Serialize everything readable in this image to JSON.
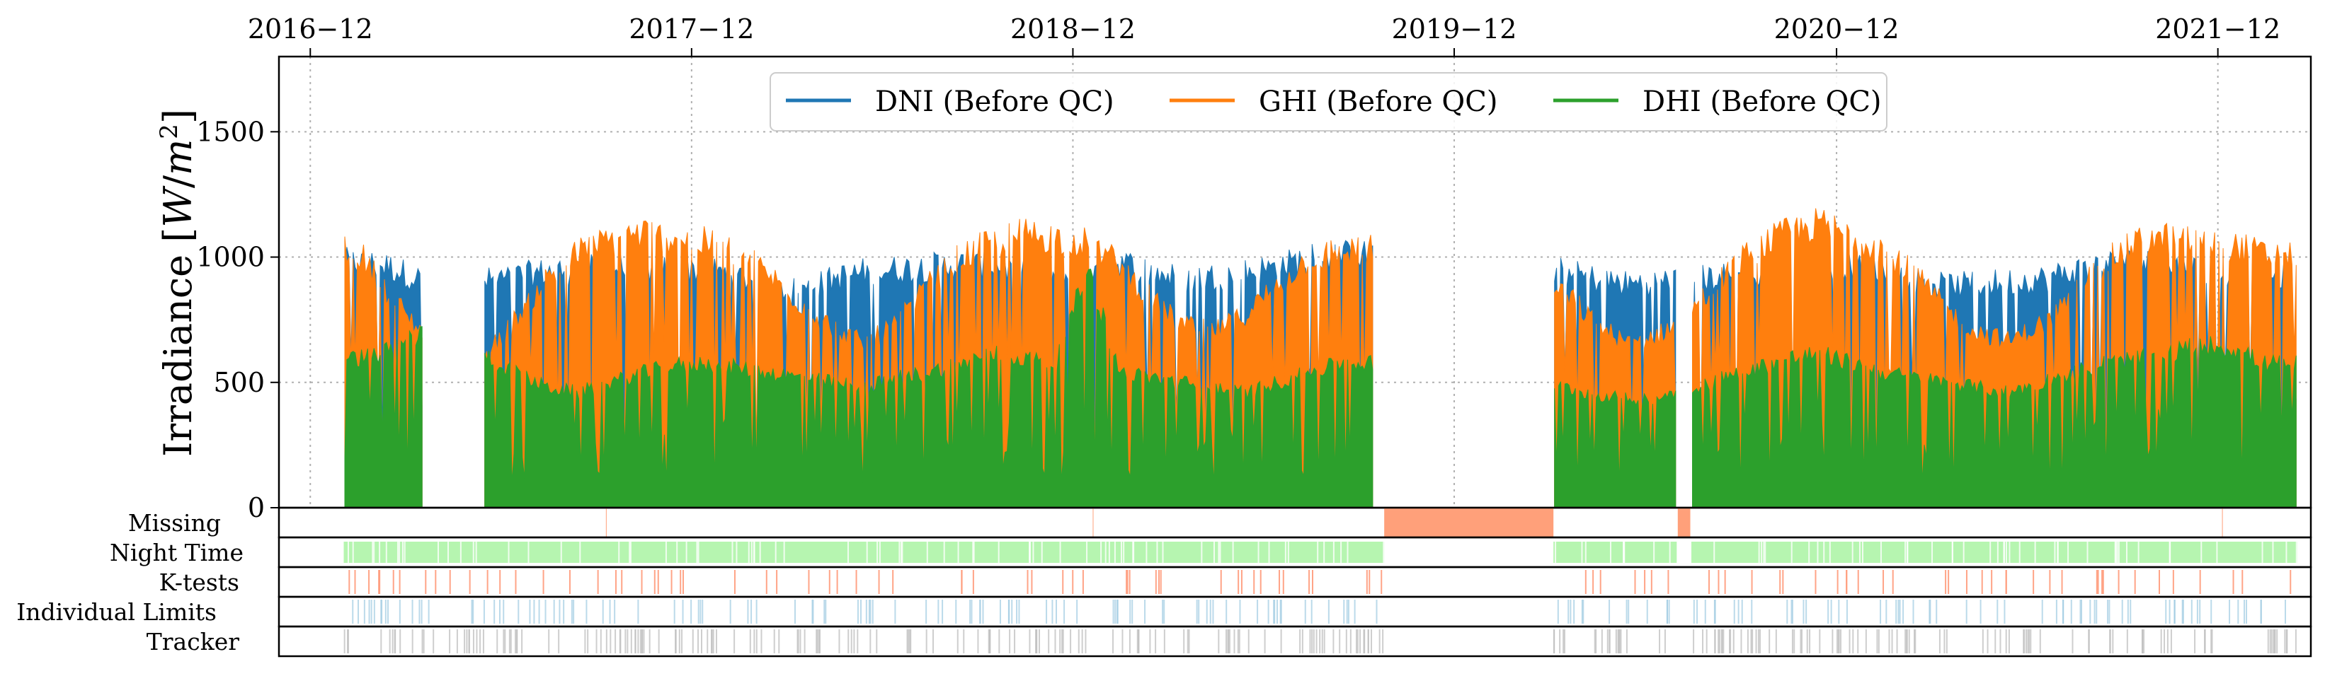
{
  "chart_data": {
    "type": "area",
    "ylabel": "Irradiance [W/m2]",
    "ylabel_base": "Irradiance [",
    "ylabel_w": "W",
    "ylabel_slash": "/",
    "ylabel_m": "m",
    "ylabel_exp": "2",
    "ylabel_end": "]",
    "ylim": [
      0,
      1800
    ],
    "yticks": [
      0,
      500,
      1000,
      1500
    ],
    "xlim": [
      "2016-11-01",
      "2022-02-28"
    ],
    "xticks": [
      "2016-12",
      "2017-12",
      "2018-12",
      "2019-12",
      "2020-12",
      "2021-12"
    ],
    "grid": true,
    "legend_position": "top-center",
    "colors": {
      "dni": "#1f77b4",
      "ghi": "#ff7f0e",
      "dhi": "#2ca02c",
      "missing": "#ffa07a",
      "night": "#b6f5b0",
      "ktests": "#ff9a7a",
      "limits": "#9ecae1",
      "tracker": "#bdbdbd"
    },
    "series": [
      {
        "name": "DNI (Before QC)",
        "key": "dni",
        "x": [
          "2017-01-15",
          "2017-02-15",
          "2017-03-15",
          "2017-04-15",
          "2017-05-15",
          "2017-06-15",
          "2017-07-15",
          "2017-08-15",
          "2017-09-15",
          "2017-10-15",
          "2017-11-15",
          "2017-12-15",
          "2018-01-15",
          "2018-02-15",
          "2018-03-15",
          "2018-04-15",
          "2018-05-15",
          "2018-06-15",
          "2018-07-15",
          "2018-08-15",
          "2018-09-15",
          "2018-10-15",
          "2018-11-15",
          "2018-12-15",
          "2019-01-15",
          "2019-02-15",
          "2019-03-15",
          "2019-04-15",
          "2019-05-15",
          "2019-06-15",
          "2019-07-15",
          "2019-08-15",
          "2019-09-15",
          "2019-10-15",
          "2019-11-15",
          "2019-12-15",
          "2020-01-15",
          "2020-02-15",
          "2020-03-15",
          "2020-04-15",
          "2020-05-15",
          "2020-06-15",
          "2020-07-15",
          "2020-08-15",
          "2020-09-15",
          "2020-10-15",
          "2020-11-15",
          "2020-12-15",
          "2021-01-15",
          "2021-02-15",
          "2021-03-15",
          "2021-04-15",
          "2021-05-15",
          "2021-06-15",
          "2021-07-15",
          "2021-08-15",
          "2021-09-15",
          "2021-10-15",
          "2021-11-15",
          "2021-12-15",
          "2022-01-15",
          "2022-02-15"
        ],
        "values": [
          1020,
          1000,
          950,
          0,
          940,
          960,
          980,
          990,
          1000,
          990,
          990,
          990,
          960,
          930,
          900,
          950,
          980,
          990,
          1000,
          1010,
          1000,
          980,
          960,
          960,
          1020,
          980,
          950,
          960,
          980,
          1000,
          1040,
          1050,
          0,
          0,
          0,
          0,
          0,
          0,
          980,
          950,
          930,
          940,
          950,
          960,
          940,
          980,
          1000,
          1000,
          980,
          950,
          920,
          930,
          940,
          950,
          980,
          1010,
          1020,
          1000,
          990,
          980,
          960,
          0
        ]
      },
      {
        "name": "GHI (Before QC)",
        "key": "ghi",
        "x": [
          "2017-01-15",
          "2017-02-15",
          "2017-03-15",
          "2017-04-15",
          "2017-05-15",
          "2017-06-15",
          "2017-07-15",
          "2017-08-15",
          "2017-09-15",
          "2017-10-15",
          "2017-11-15",
          "2017-12-15",
          "2018-01-15",
          "2018-02-15",
          "2018-03-15",
          "2018-04-15",
          "2018-05-15",
          "2018-06-15",
          "2018-07-15",
          "2018-08-15",
          "2018-09-15",
          "2018-10-15",
          "2018-11-15",
          "2018-12-15",
          "2019-01-15",
          "2019-02-15",
          "2019-03-15",
          "2019-04-15",
          "2019-05-15",
          "2019-06-15",
          "2019-07-15",
          "2019-08-15",
          "2019-09-15",
          "2019-10-15",
          "2019-11-15",
          "2019-12-15",
          "2020-01-15",
          "2020-02-15",
          "2020-03-15",
          "2020-04-15",
          "2020-05-15",
          "2020-06-15",
          "2020-07-15",
          "2020-08-15",
          "2020-09-15",
          "2020-10-15",
          "2020-11-15",
          "2020-12-15",
          "2021-01-15",
          "2021-02-15",
          "2021-03-15",
          "2021-04-15",
          "2021-05-15",
          "2021-06-15",
          "2021-07-15",
          "2021-08-15",
          "2021-09-15",
          "2021-10-15",
          "2021-11-15",
          "2021-12-15",
          "2022-01-15",
          "2022-02-15"
        ],
        "values": [
          1070,
          880,
          740,
          0,
          620,
          780,
          950,
          1060,
          1110,
          1140,
          1120,
          1100,
          1060,
          960,
          850,
          750,
          680,
          760,
          920,
          1040,
          1100,
          1140,
          1120,
          1100,
          1010,
          860,
          760,
          730,
          800,
          930,
          1030,
          1070,
          0,
          0,
          0,
          0,
          0,
          0,
          900,
          760,
          680,
          720,
          820,
          960,
          1080,
          1140,
          1180,
          1130,
          1080,
          960,
          830,
          730,
          690,
          760,
          880,
          1020,
          1100,
          1120,
          1110,
          1090,
          1050,
          0
        ]
      },
      {
        "name": "DHI (Before QC)",
        "key": "dhi",
        "x": [
          "2017-01-15",
          "2017-02-15",
          "2017-03-15",
          "2017-04-15",
          "2017-05-15",
          "2017-06-15",
          "2017-07-15",
          "2017-08-15",
          "2017-09-15",
          "2017-10-15",
          "2017-11-15",
          "2017-12-15",
          "2018-01-15",
          "2018-02-15",
          "2018-03-15",
          "2018-04-15",
          "2018-05-15",
          "2018-06-15",
          "2018-07-15",
          "2018-08-15",
          "2018-09-15",
          "2018-10-15",
          "2018-11-15",
          "2018-12-15",
          "2019-01-15",
          "2019-02-15",
          "2019-03-15",
          "2019-04-15",
          "2019-05-15",
          "2019-06-15",
          "2019-07-15",
          "2019-08-15",
          "2019-09-15",
          "2019-10-15",
          "2019-11-15",
          "2019-12-15",
          "2020-01-15",
          "2020-02-15",
          "2020-03-15",
          "2020-04-15",
          "2020-05-15",
          "2020-06-15",
          "2020-07-15",
          "2020-08-15",
          "2020-09-15",
          "2020-10-15",
          "2020-11-15",
          "2020-12-15",
          "2021-01-15",
          "2021-02-15",
          "2021-03-15",
          "2021-04-15",
          "2021-05-15",
          "2021-06-15",
          "2021-07-15",
          "2021-08-15",
          "2021-09-15",
          "2021-10-15",
          "2021-11-15",
          "2021-12-15",
          "2022-01-15",
          "2022-02-15"
        ],
        "values": [
          620,
          650,
          720,
          0,
          640,
          560,
          500,
          480,
          520,
          560,
          590,
          600,
          580,
          560,
          540,
          520,
          500,
          540,
          560,
          600,
          640,
          620,
          600,
          1000,
          560,
          540,
          520,
          500,
          480,
          520,
          560,
          600,
          0,
          0,
          0,
          0,
          0,
          0,
          500,
          470,
          450,
          460,
          500,
          540,
          580,
          620,
          640,
          600,
          560,
          540,
          520,
          500,
          480,
          520,
          560,
          600,
          620,
          640,
          680,
          660,
          600,
          0
        ]
      }
    ],
    "gaps": [
      [
        "2017-03-20",
        "2017-05-15"
      ],
      [
        "2019-09-25",
        "2020-03-05"
      ],
      [
        "2020-07-02",
        "2020-07-14"
      ]
    ],
    "strips": {
      "labels": [
        "Missing",
        "Night Time",
        "K-tests",
        "Individual Limits",
        "Tracker"
      ],
      "missing_ranges": [
        [
          "2019-09-25",
          "2020-03-05"
        ],
        [
          "2020-07-02",
          "2020-07-14"
        ]
      ],
      "night_active": [
        [
          "2017-01-02",
          "2019-09-25"
        ],
        [
          "2020-03-05",
          "2020-07-01"
        ],
        [
          "2020-07-15",
          "2022-02-15"
        ]
      ]
    },
    "legend": [
      "DNI (Before QC)",
      "GHI (Before QC)",
      "DHI (Before QC)"
    ]
  }
}
